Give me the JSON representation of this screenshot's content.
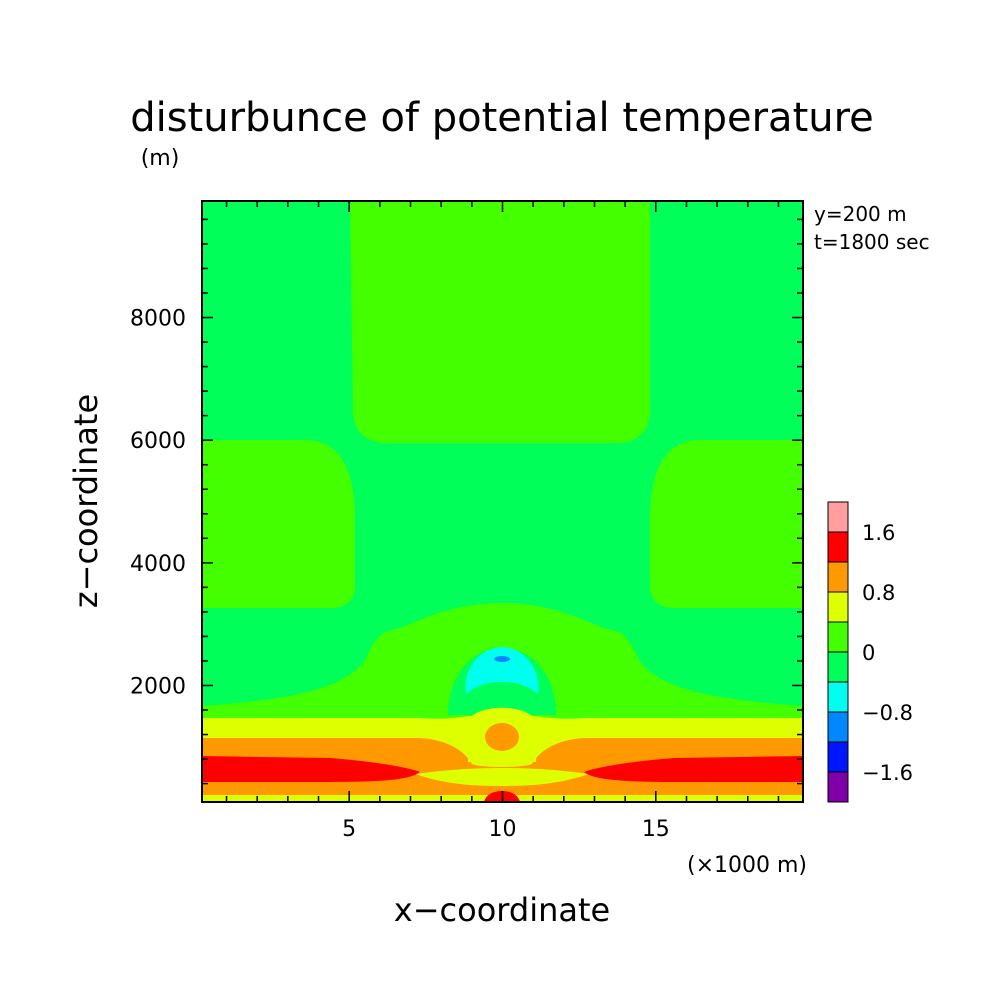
{
  "chart_data": {
    "type": "heatmap",
    "title": "disturbunce of potential temperature",
    "xlabel": "x−coordinate",
    "ylabel": "z−coordinate",
    "x_unit": "(×1000 m)",
    "y_unit": "(m)",
    "annotations": [
      "y=200 m",
      "t=1800 sec"
    ],
    "xlim": [
      0.2,
      19.8
    ],
    "ylim": [
      100,
      9900
    ],
    "x_ticks": [
      {
        "value": 5,
        "label": "5"
      },
      {
        "value": 10,
        "label": "10"
      },
      {
        "value": 15,
        "label": "15"
      }
    ],
    "y_ticks": [
      {
        "value": 2000,
        "label": "2000"
      },
      {
        "value": 4000,
        "label": "4000"
      },
      {
        "value": 6000,
        "label": "6000"
      },
      {
        "value": 8000,
        "label": "8000"
      }
    ],
    "levels": [
      {
        "range": "< -1.6",
        "color": "#7f00a8"
      },
      {
        "range": "-1.6 to -1.2",
        "color": "#0016ff"
      },
      {
        "range": "-1.2 to -0.8",
        "color": "#0088ff"
      },
      {
        "range": "-0.8 to -0.4",
        "color": "#00ffee"
      },
      {
        "range": "-0.4 to 0",
        "color": "#00ff58"
      },
      {
        "range": "0 to 0.4",
        "color": "#44ff00"
      },
      {
        "range": "0.4 to 0.8",
        "color": "#ddff00"
      },
      {
        "range": "0.8 to 1.2",
        "color": "#ff9900"
      },
      {
        "range": "1.2 to 1.6",
        "color": "#ff0000"
      },
      {
        "range": "> 1.6",
        "color": "#ff9fa0"
      }
    ],
    "colorbar_labels": [
      "1.6",
      "0.8",
      "0",
      "−0.8",
      "−1.6"
    ],
    "regions": [
      {
        "level": "-0.4 to 0",
        "description": "background above z~1500 m"
      },
      {
        "level": "0 to 0.4",
        "description": "upper central column, x 5-15, z 6000-9900"
      },
      {
        "level": "0 to 0.4",
        "description": "left side block, x 0.2-5, z 3300-6000"
      },
      {
        "level": "0 to 0.4",
        "description": "right side block, x 15-19.8, z 3300-6000"
      },
      {
        "level": "0 to 0.4",
        "description": "central dome, x 5.5-14.5, z 1300-3300"
      },
      {
        "level": "-0.8 to -0.4",
        "description": "cold bubble, x 8.8-11.2, z 1700-2550"
      },
      {
        "level": "-1.2 to -0.8",
        "description": "core near x 10, z 2450"
      },
      {
        "level": "0.4 to 0.8",
        "description": "warm bubble x 9.2-10.8, z 700-1500 and layer z 1050-1350"
      },
      {
        "level": "0.8 to 1.2",
        "description": "layer z 550-1050 and core near x 10, z 1100"
      },
      {
        "level": "1.2 to 1.6",
        "description": "left and right low-level bands z 350-750; surface patch near x 10"
      },
      {
        "level": "0.4 to 0.8",
        "description": "surface layer z 100-200"
      }
    ]
  }
}
